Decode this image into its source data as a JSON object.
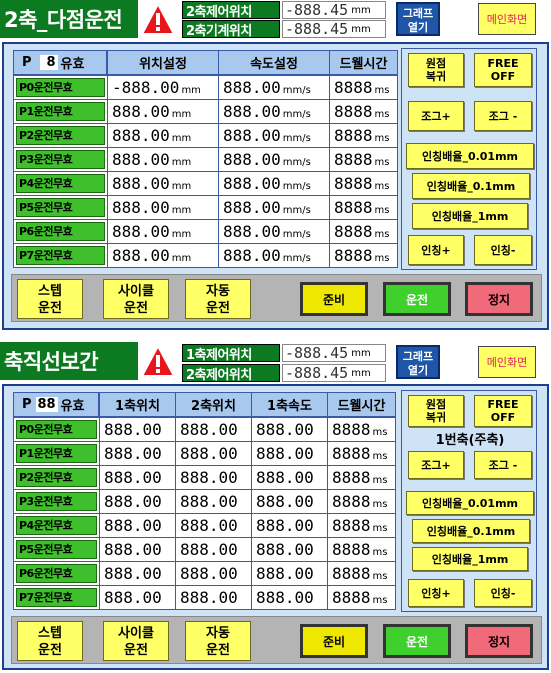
{
  "panel1": {
    "title": "2축_다점운전",
    "pos_labels": [
      "2축제어위치",
      "2축기계위치"
    ],
    "pos_values": [
      "-888.45",
      "-888.45"
    ],
    "pos_unit": "mm",
    "graph_button": [
      "그래프",
      "열기"
    ],
    "main_button": "메인화면",
    "point_prefix": "P",
    "point_value": "8",
    "valid_label": "유효",
    "col_headers": [
      "위치설정",
      "속도설정",
      "드웰시간"
    ],
    "rows": [
      {
        "label": "P0운전무효",
        "pos": "-888.00",
        "speed": "888.00",
        "dwell": "8888"
      },
      {
        "label": "P1운전무효",
        "pos": "888.00",
        "speed": "888.00",
        "dwell": "8888"
      },
      {
        "label": "P2운전무효",
        "pos": "888.00",
        "speed": "888.00",
        "dwell": "8888"
      },
      {
        "label": "P3운전무효",
        "pos": "888.00",
        "speed": "888.00",
        "dwell": "8888"
      },
      {
        "label": "P4운전무효",
        "pos": "888.00",
        "speed": "888.00",
        "dwell": "8888"
      },
      {
        "label": "P5운전무효",
        "pos": "888.00",
        "speed": "888.00",
        "dwell": "8888"
      },
      {
        "label": "P6운전무효",
        "pos": "888.00",
        "speed": "888.00",
        "dwell": "8888"
      },
      {
        "label": "P7운전무효",
        "pos": "888.00",
        "speed": "888.00",
        "dwell": "8888"
      }
    ],
    "units": {
      "pos": "mm",
      "speed": "mm/s",
      "dwell": "ms"
    },
    "side": {
      "home": [
        "원점",
        "복귀"
      ],
      "free": [
        "FREE",
        "OFF"
      ],
      "jog_plus": "조그+",
      "jog_minus": "조그 -",
      "inch1": "인칭배율_0.01mm",
      "inch2": "인칭배율_0.1mm",
      "inch3": "인칭배율_1mm",
      "inch_plus": "인칭+",
      "inch_minus": "인칭-"
    },
    "bottom": {
      "step": [
        "스텝",
        "운전"
      ],
      "cycle": [
        "사이클",
        "운전"
      ],
      "auto": [
        "자동",
        "운전"
      ],
      "ready": "준비",
      "run": "운전",
      "stop": "정지"
    }
  },
  "panel2": {
    "title": "축직선보간",
    "pos_labels": [
      "1축제어위치",
      "2축제어위치"
    ],
    "pos_values": [
      "-888.45",
      "-888.45"
    ],
    "pos_unit": "mm",
    "graph_button": [
      "그래프",
      "열기"
    ],
    "main_button": "메인화면",
    "point_prefix": "P",
    "point_value": "88",
    "valid_label": "유효",
    "col_headers": [
      "1축위치",
      "2축위치",
      "1축속도",
      "드웰시간"
    ],
    "rows": [
      {
        "label": "P0운전무효",
        "a": "888.00",
        "b": "888.00",
        "c": "888.00",
        "dwell": "8888"
      },
      {
        "label": "P1운전무효",
        "a": "888.00",
        "b": "888.00",
        "c": "888.00",
        "dwell": "8888"
      },
      {
        "label": "P2운전무효",
        "a": "888.00",
        "b": "888.00",
        "c": "888.00",
        "dwell": "8888"
      },
      {
        "label": "P3운전무효",
        "a": "888.00",
        "b": "888.00",
        "c": "888.00",
        "dwell": "8888"
      },
      {
        "label": "P4운전무효",
        "a": "888.00",
        "b": "888.00",
        "c": "888.00",
        "dwell": "8888"
      },
      {
        "label": "P5운전무효",
        "a": "888.00",
        "b": "888.00",
        "c": "888.00",
        "dwell": "8888"
      },
      {
        "label": "P6운전무효",
        "a": "888.00",
        "b": "888.00",
        "c": "888.00",
        "dwell": "8888"
      },
      {
        "label": "P7운전무효",
        "a": "888.00",
        "b": "888.00",
        "c": "888.00",
        "dwell": "8888"
      }
    ],
    "units": {
      "dwell": "ms"
    },
    "side": {
      "home": [
        "원점",
        "복귀"
      ],
      "free": [
        "FREE",
        "OFF"
      ],
      "axis_select": "1번축(주축)",
      "jog_plus": "조그+",
      "jog_minus": "조그 -",
      "inch1": "인칭배율_0.01mm",
      "inch2": "인칭배율_0.1mm",
      "inch3": "인칭배율_1mm",
      "inch_plus": "인칭+",
      "inch_minus": "인칭-"
    },
    "bottom": {
      "step": [
        "스텝",
        "운전"
      ],
      "cycle": [
        "사이클",
        "운전"
      ],
      "auto": [
        "자동",
        "운전"
      ],
      "ready": "준비",
      "run": "운전",
      "stop": "정지"
    }
  },
  "colors": {
    "header_green": "#0c7a20",
    "table_bg": "#cfe3f7",
    "row_green": "#3fbf2c",
    "ready": "#eee800",
    "run": "#3fd02e",
    "stop": "#f06a7a"
  }
}
